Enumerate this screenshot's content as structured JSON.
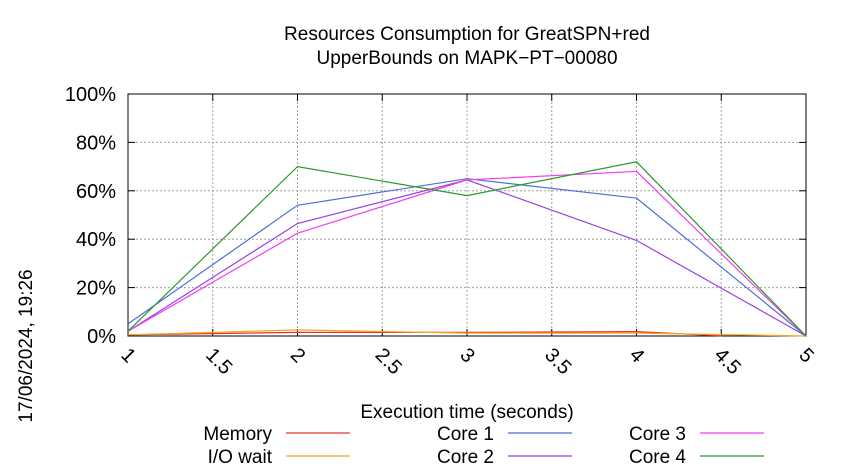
{
  "chart_data": {
    "type": "line",
    "title": [
      "Resources Consumption for GreatSPN+red",
      "UpperBounds on MAPK−PT−00080"
    ],
    "xlabel": "Execution time (seconds)",
    "ylabel": "",
    "side_label": "17/06/2024, 19:26",
    "xlim": [
      1,
      5
    ],
    "ylim": [
      0,
      100
    ],
    "x_ticks": [
      "1",
      "1.5",
      "2",
      "2.5",
      "3",
      "3.5",
      "4",
      "4.5",
      "5"
    ],
    "y_ticks": [
      "0%",
      "20%",
      "40%",
      "60%",
      "80%",
      "100%"
    ],
    "grid": true,
    "legend_position": "bottom",
    "series": [
      {
        "name": "Memory",
        "color": "#e8302a",
        "x": [
          1,
          2,
          3,
          4,
          4.5
        ],
        "values": [
          0.5,
          1.5,
          1.5,
          1.8,
          0.1
        ]
      },
      {
        "name": "I/O wait",
        "color": "#f5a623",
        "x": [
          1,
          2,
          3,
          4,
          5
        ],
        "values": [
          0.5,
          2.5,
          1.2,
          1.2,
          0
        ]
      },
      {
        "name": "Core 1",
        "color": "#4f6fd8",
        "x": [
          1,
          2,
          3,
          4,
          5
        ],
        "values": [
          5,
          54,
          65,
          57,
          0
        ]
      },
      {
        "name": "Core 2",
        "color": "#9b40e0",
        "x": [
          1,
          2,
          3,
          4,
          5
        ],
        "values": [
          2,
          46.5,
          64.5,
          39.5,
          0
        ]
      },
      {
        "name": "Core 3",
        "color": "#f23ef2",
        "x": [
          1,
          2,
          3,
          4,
          5
        ],
        "values": [
          2,
          42.5,
          64.5,
          68,
          0
        ]
      },
      {
        "name": "Core 4",
        "color": "#2a9a2a",
        "x": [
          1,
          2,
          3,
          4,
          5
        ],
        "values": [
          2,
          70,
          58,
          72,
          0
        ]
      }
    ]
  }
}
